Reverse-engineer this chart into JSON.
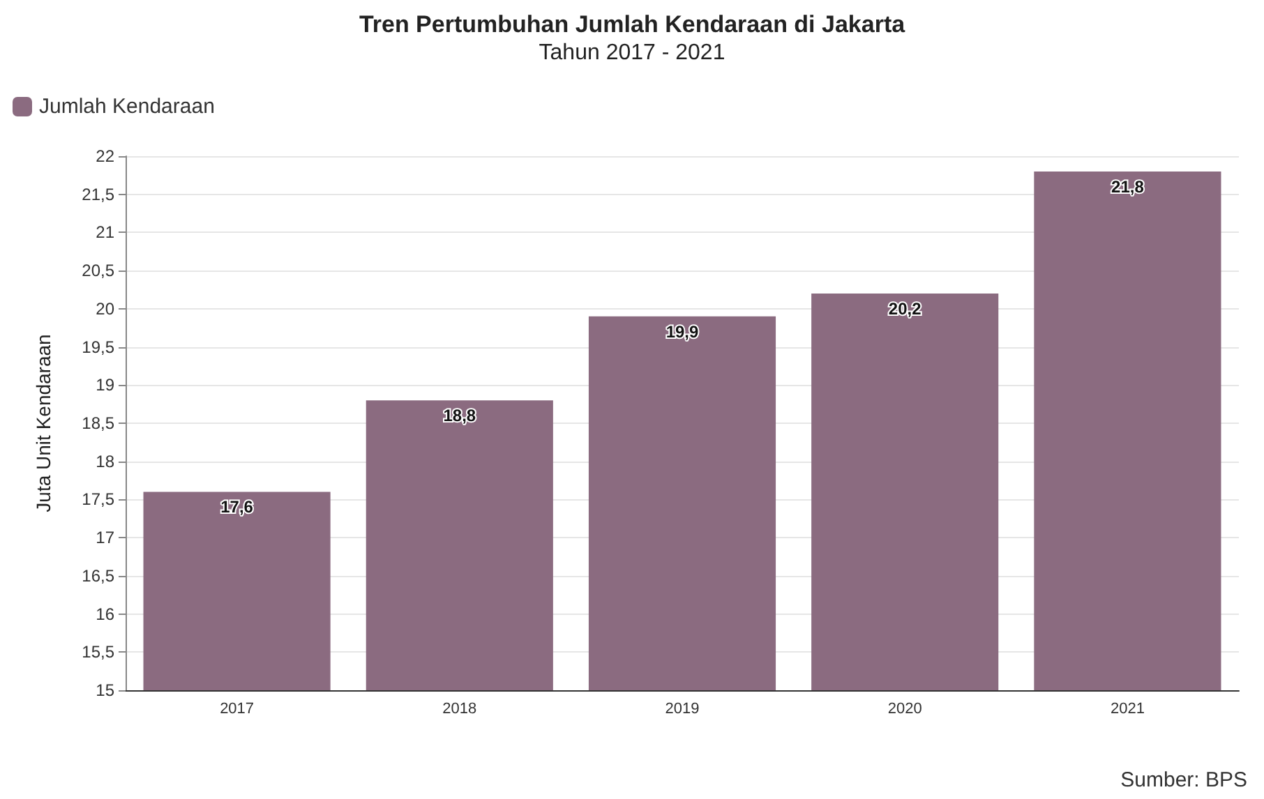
{
  "chart_data": {
    "type": "bar",
    "title": "Tren Pertumbuhan Jumlah Kendaraan di Jakarta",
    "subtitle": "Tahun 2017 - 2021",
    "ylabel": "Juta Unit Kendaraan",
    "categories": [
      "2017",
      "2018",
      "2019",
      "2020",
      "2021"
    ],
    "series": [
      {
        "name": "Jumlah Kendaraan",
        "color": "#8b6b80",
        "values": [
          17.6,
          18.8,
          19.9,
          20.2,
          21.8
        ],
        "value_labels": [
          "17,6",
          "18,8",
          "19,9",
          "20,2",
          "21,8"
        ]
      }
    ],
    "ylim": [
      15,
      22
    ],
    "yticks": [
      15,
      {
        "value": 15.5,
        "label": "15,5"
      },
      16,
      {
        "value": 16.5,
        "label": "16,5"
      },
      17,
      {
        "value": 17.5,
        "label": "17,5"
      },
      18,
      {
        "value": 18.5,
        "label": "18,5"
      },
      19,
      {
        "value": 19.5,
        "label": "19,5"
      },
      20,
      {
        "value": 20.5,
        "label": "20,5"
      },
      21,
      {
        "value": 21.5,
        "label": "21,5"
      },
      22
    ],
    "grid": "y",
    "legend": "top left",
    "annotations": [
      "Sumber: BPS"
    ]
  }
}
